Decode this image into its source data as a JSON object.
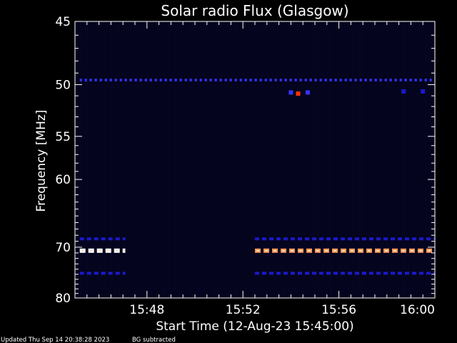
{
  "chart_data": {
    "type": "heatmap",
    "title": "Solar radio Flux (Glasgow)",
    "xlabel": "Start Time (12-Aug-23 15:45:00)",
    "ylabel": "Frequency [MHz]",
    "x_unit": "minutes after 15:45:00",
    "xlim": [
      0,
      15
    ],
    "ylim": [
      45,
      80
    ],
    "y_scale": "reciprocal",
    "x_ticks": [
      {
        "value": 3,
        "label": "15:48"
      },
      {
        "value": 7,
        "label": "15:52"
      },
      {
        "value": 11,
        "label": "15:56"
      },
      {
        "value": 15,
        "label": "16:00"
      }
    ],
    "y_ticks": [
      {
        "value": 45,
        "label": "45"
      },
      {
        "value": 50,
        "label": "50"
      },
      {
        "value": 55,
        "label": "55"
      },
      {
        "value": 60,
        "label": "60"
      },
      {
        "value": 70,
        "label": "70"
      },
      {
        "value": 80,
        "label": "80"
      }
    ],
    "colormap": [
      "#000000",
      "#0a0a40",
      "#1a1acc",
      "#3333ff",
      "#ff3300",
      "#ff9955",
      "#ffffff"
    ],
    "bands": [
      {
        "freq": 49.6,
        "x_start": 0.2,
        "x_end": 15,
        "level": 0.45
      },
      {
        "freq": 68.6,
        "x_start": 0.2,
        "x_end": 2.1,
        "level": 0.4
      },
      {
        "freq": 68.6,
        "x_start": 7.5,
        "x_end": 15,
        "level": 0.4
      },
      {
        "freq": 70.6,
        "x_start": 0.2,
        "x_end": 2.1,
        "level": 0.95
      },
      {
        "freq": 70.6,
        "x_start": 7.5,
        "x_end": 15,
        "level": 0.85
      },
      {
        "freq": 74.8,
        "x_start": 0.2,
        "x_end": 2.1,
        "level": 0.25
      },
      {
        "freq": 74.8,
        "x_start": 7.5,
        "x_end": 15,
        "level": 0.3
      }
    ],
    "blobs": [
      {
        "x": 9.0,
        "freq": 50.7,
        "level": 0.5
      },
      {
        "x": 9.3,
        "freq": 50.8,
        "level": 0.6
      },
      {
        "x": 9.7,
        "freq": 50.7,
        "level": 0.55
      },
      {
        "x": 13.7,
        "freq": 50.6,
        "level": 0.35
      },
      {
        "x": 14.5,
        "freq": 50.6,
        "level": 0.35
      }
    ]
  },
  "footer": {
    "updated": "Updated Thu Sep 14 20:38:28 2023",
    "note": "BG subtracted"
  }
}
